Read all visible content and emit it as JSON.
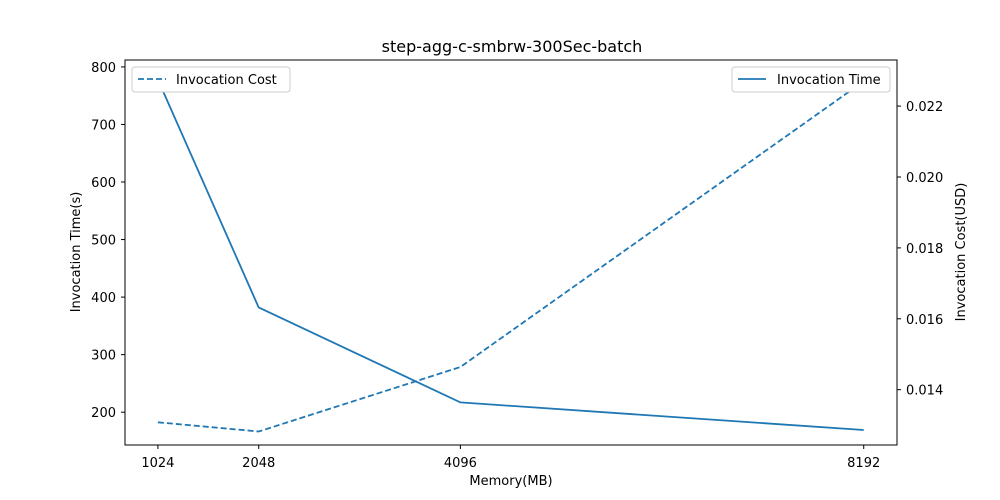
{
  "chart_data": {
    "type": "line",
    "title": "step-agg-c-smbrw-300Sec-batch",
    "xlabel": "Memory(MB)",
    "ylabel_left": "Invocation Time(s)",
    "ylabel_right": "Invocation Cost(USD)",
    "x": [
      1024,
      2048,
      4096,
      8192
    ],
    "x_ticks": [
      "1024",
      "2048",
      "4096",
      "8192"
    ],
    "xlim": [
      690,
      8530
    ],
    "ylim_left": [
      143,
      812
    ],
    "ylim_right": [
      0.01244,
      0.0233
    ],
    "y_ticks_left": [
      200,
      300,
      400,
      500,
      600,
      700,
      800
    ],
    "y_ticks_right": [
      0.014,
      0.016,
      0.018,
      0.02,
      0.022
    ],
    "grid": false,
    "series": [
      {
        "name": "Invocation Time",
        "axis": "left",
        "style": "solid",
        "color": "#1f77b4",
        "values": [
          778,
          382,
          217,
          169
        ],
        "legend_position": "top-right"
      },
      {
        "name": "Invocation Cost",
        "axis": "right",
        "style": "dashed",
        "color": "#1f77b4",
        "values": [
          0.01308,
          0.01282,
          0.01464,
          0.0227
        ],
        "legend_position": "top-left"
      }
    ]
  }
}
